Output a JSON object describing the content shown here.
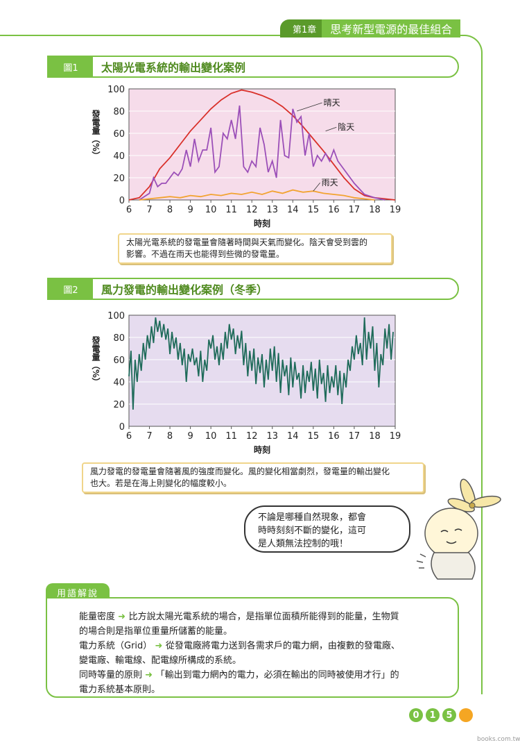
{
  "chapter": {
    "num": "第1章",
    "title": "思考新型電源的最佳組合"
  },
  "fig1": {
    "tag": "圖1",
    "title": "太陽光電系統的輸出變化案例",
    "caption_lines": [
      "太陽光電系統的發電量會隨著時間與天氣而變化。陰天會受到雲的",
      "影響。不過在雨天也能得到些微的發電量。"
    ],
    "chart_data": {
      "type": "line",
      "xlabel": "時刻",
      "ylabel": "發電量（%）",
      "xlim": [
        6,
        19
      ],
      "ylim": [
        0,
        100
      ],
      "xticks": [
        "6",
        "7",
        "8",
        "9",
        "10",
        "11",
        "12",
        "13",
        "14",
        "15",
        "16",
        "17",
        "18",
        "19"
      ],
      "yticks": [
        "0",
        "20",
        "40",
        "60",
        "80",
        "100"
      ],
      "grid": true,
      "series": [
        {
          "name": "晴天",
          "color": "#d9302a",
          "x": [
            6,
            6.5,
            7,
            7.5,
            8,
            8.5,
            9,
            9.5,
            10,
            10.5,
            11,
            11.5,
            12,
            12.5,
            13,
            13.5,
            14,
            14.5,
            15,
            15.5,
            16,
            16.5,
            17,
            17.5,
            18,
            18.5,
            19
          ],
          "y": [
            0,
            2,
            12,
            28,
            38,
            50,
            62,
            72,
            82,
            90,
            96,
            99,
            97,
            94,
            90,
            84,
            76,
            66,
            55,
            44,
            32,
            20,
            10,
            4,
            2,
            1,
            0
          ]
        },
        {
          "name": "陰天",
          "color": "#9b4fb8",
          "x": [
            6.5,
            7,
            7.2,
            7.4,
            7.6,
            7.8,
            8,
            8.2,
            8.4,
            8.6,
            8.8,
            9,
            9.2,
            9.4,
            9.6,
            9.8,
            10,
            10.2,
            10.4,
            10.6,
            10.8,
            11,
            11.2,
            11.4,
            11.6,
            11.8,
            12,
            12.2,
            12.4,
            12.6,
            12.8,
            13,
            13.2,
            13.4,
            13.6,
            13.8,
            14,
            14.2,
            14.4,
            14.6,
            14.8,
            15,
            15.2,
            15.4,
            15.6,
            15.8,
            16,
            16.2,
            16.4,
            16.6,
            16.8,
            17,
            17.5,
            18,
            18.5
          ],
          "y": [
            0,
            6,
            20,
            12,
            15,
            15,
            20,
            25,
            22,
            28,
            45,
            30,
            55,
            35,
            45,
            45,
            65,
            25,
            30,
            60,
            55,
            72,
            55,
            85,
            30,
            25,
            35,
            30,
            65,
            50,
            25,
            35,
            20,
            72,
            40,
            38,
            82,
            70,
            75,
            40,
            60,
            30,
            40,
            35,
            42,
            35,
            45,
            35,
            30,
            25,
            20,
            15,
            5,
            2,
            0
          ]
        },
        {
          "name": "雨天",
          "color": "#f2a330",
          "x": [
            6.5,
            7,
            7.5,
            8,
            8.5,
            9,
            9.5,
            10,
            10.5,
            11,
            11.5,
            12,
            12.5,
            13,
            13.5,
            14,
            14.5,
            15,
            15.5,
            16,
            16.5,
            17,
            17.5,
            18
          ],
          "y": [
            0,
            1,
            2,
            3,
            2,
            4,
            3,
            5,
            4,
            6,
            5,
            7,
            5,
            8,
            6,
            9,
            7,
            8,
            6,
            5,
            4,
            2,
            1,
            0
          ]
        }
      ],
      "annotations": [
        "晴天",
        "陰天",
        "雨天"
      ]
    }
  },
  "fig2": {
    "tag": "圖2",
    "title": "風力發電的輸出變化案例（冬季）",
    "caption_lines": [
      "風力發電的發電量會隨著風的強度而變化。風的變化相當劇烈，發電量的輸出變化",
      "也大。若是在海上則變化的幅度較小。"
    ],
    "chart_data": {
      "type": "line",
      "xlabel": "時刻",
      "ylabel": "發電量（%）",
      "xlim": [
        6,
        19
      ],
      "ylim": [
        0,
        100
      ],
      "xticks": [
        "6",
        "7",
        "8",
        "9",
        "10",
        "11",
        "12",
        "13",
        "14",
        "15",
        "16",
        "17",
        "18",
        "19"
      ],
      "yticks": [
        "0",
        "20",
        "40",
        "60",
        "80",
        "100"
      ],
      "grid": true,
      "series": [
        {
          "color": "#1f6b5a",
          "x": [
            6,
            6.1,
            6.2,
            6.3,
            6.4,
            6.5,
            6.6,
            6.7,
            6.8,
            6.9,
            7,
            7.1,
            7.2,
            7.3,
            7.4,
            7.5,
            7.6,
            7.7,
            7.8,
            7.9,
            8,
            8.1,
            8.2,
            8.3,
            8.4,
            8.5,
            8.6,
            8.7,
            8.8,
            8.9,
            9,
            9.1,
            9.2,
            9.3,
            9.4,
            9.5,
            9.6,
            9.7,
            9.8,
            9.9,
            10,
            10.1,
            10.2,
            10.3,
            10.4,
            10.5,
            10.6,
            10.7,
            10.8,
            10.9,
            11,
            11.1,
            11.2,
            11.3,
            11.4,
            11.5,
            11.6,
            11.7,
            11.8,
            11.9,
            12,
            12.1,
            12.2,
            12.3,
            12.4,
            12.5,
            12.6,
            12.7,
            12.8,
            12.9,
            13,
            13.1,
            13.2,
            13.3,
            13.4,
            13.5,
            13.6,
            13.7,
            13.8,
            13.9,
            14,
            14.1,
            14.2,
            14.3,
            14.4,
            14.5,
            14.6,
            14.7,
            14.8,
            14.9,
            15,
            15.1,
            15.2,
            15.3,
            15.4,
            15.5,
            15.6,
            15.7,
            15.8,
            15.9,
            16,
            16.1,
            16.2,
            16.3,
            16.4,
            16.5,
            16.6,
            16.7,
            16.8,
            16.9,
            17,
            17.1,
            17.2,
            17.3,
            17.4,
            17.5,
            17.6,
            17.7,
            17.8,
            17.9,
            18,
            18.1,
            18.2,
            18.3,
            18.4,
            18.5,
            18.6,
            18.7,
            18.8,
            18.9
          ],
          "y": [
            45,
            68,
            15,
            60,
            40,
            65,
            50,
            75,
            60,
            82,
            70,
            90,
            75,
            98,
            85,
            95,
            80,
            92,
            78,
            88,
            65,
            85,
            70,
            80,
            60,
            75,
            55,
            70,
            40,
            65,
            58,
            70,
            55,
            62,
            45,
            68,
            40,
            60,
            50,
            78,
            70,
            82,
            60,
            72,
            55,
            75,
            60,
            85,
            70,
            92,
            78,
            88,
            65,
            82,
            70,
            86,
            55,
            75,
            45,
            68,
            50,
            70,
            38,
            62,
            48,
            65,
            35,
            60,
            42,
            70,
            50,
            72,
            40,
            66,
            30,
            60,
            45,
            55,
            28,
            62,
            35,
            58,
            42,
            48,
            25,
            55,
            30,
            50,
            40,
            58,
            32,
            52,
            25,
            60,
            38,
            48,
            22,
            55,
            30,
            45,
            35,
            55,
            28,
            50,
            20,
            48,
            35,
            60,
            50,
            72,
            60,
            82,
            65,
            75,
            55,
            98,
            60,
            85,
            70,
            90,
            50,
            75,
            35,
            65,
            55,
            88,
            70,
            92,
            60,
            85
          ]
        }
      ]
    }
  },
  "mascot": {
    "speech_lines": [
      "不論是哪種自然現象，都會",
      "時時刻刻不斷的變化，這可",
      "是人類無法控制的哦！"
    ]
  },
  "glossary": {
    "tag": "用語解說",
    "entries": [
      {
        "term": "能量密度",
        "lines": [
          "比方說太陽光電系統的場合，是指單位面積所能得到的能量，生物質",
          "的場合則是指單位重量所儲蓄的能量。"
        ]
      },
      {
        "term": "電力系統（Grid）",
        "lines": [
          "從發電廠將電力送到各需求戶的電力網，由複數的發電廠、",
          "變電廠、輸電線、配電線所構成的系統。"
        ]
      },
      {
        "term": "同時等量的原則",
        "lines": [
          "「輸出到電力網內的電力，必須在輸出的同時被使用才行」的",
          "電力系統基本原則。"
        ]
      }
    ]
  },
  "page": {
    "digits": [
      "0",
      "1",
      "5"
    ]
  },
  "watermark": "books.com.tw",
  "colors": {
    "accent": "#7ac143",
    "dark_accent": "#5a9a2a"
  }
}
